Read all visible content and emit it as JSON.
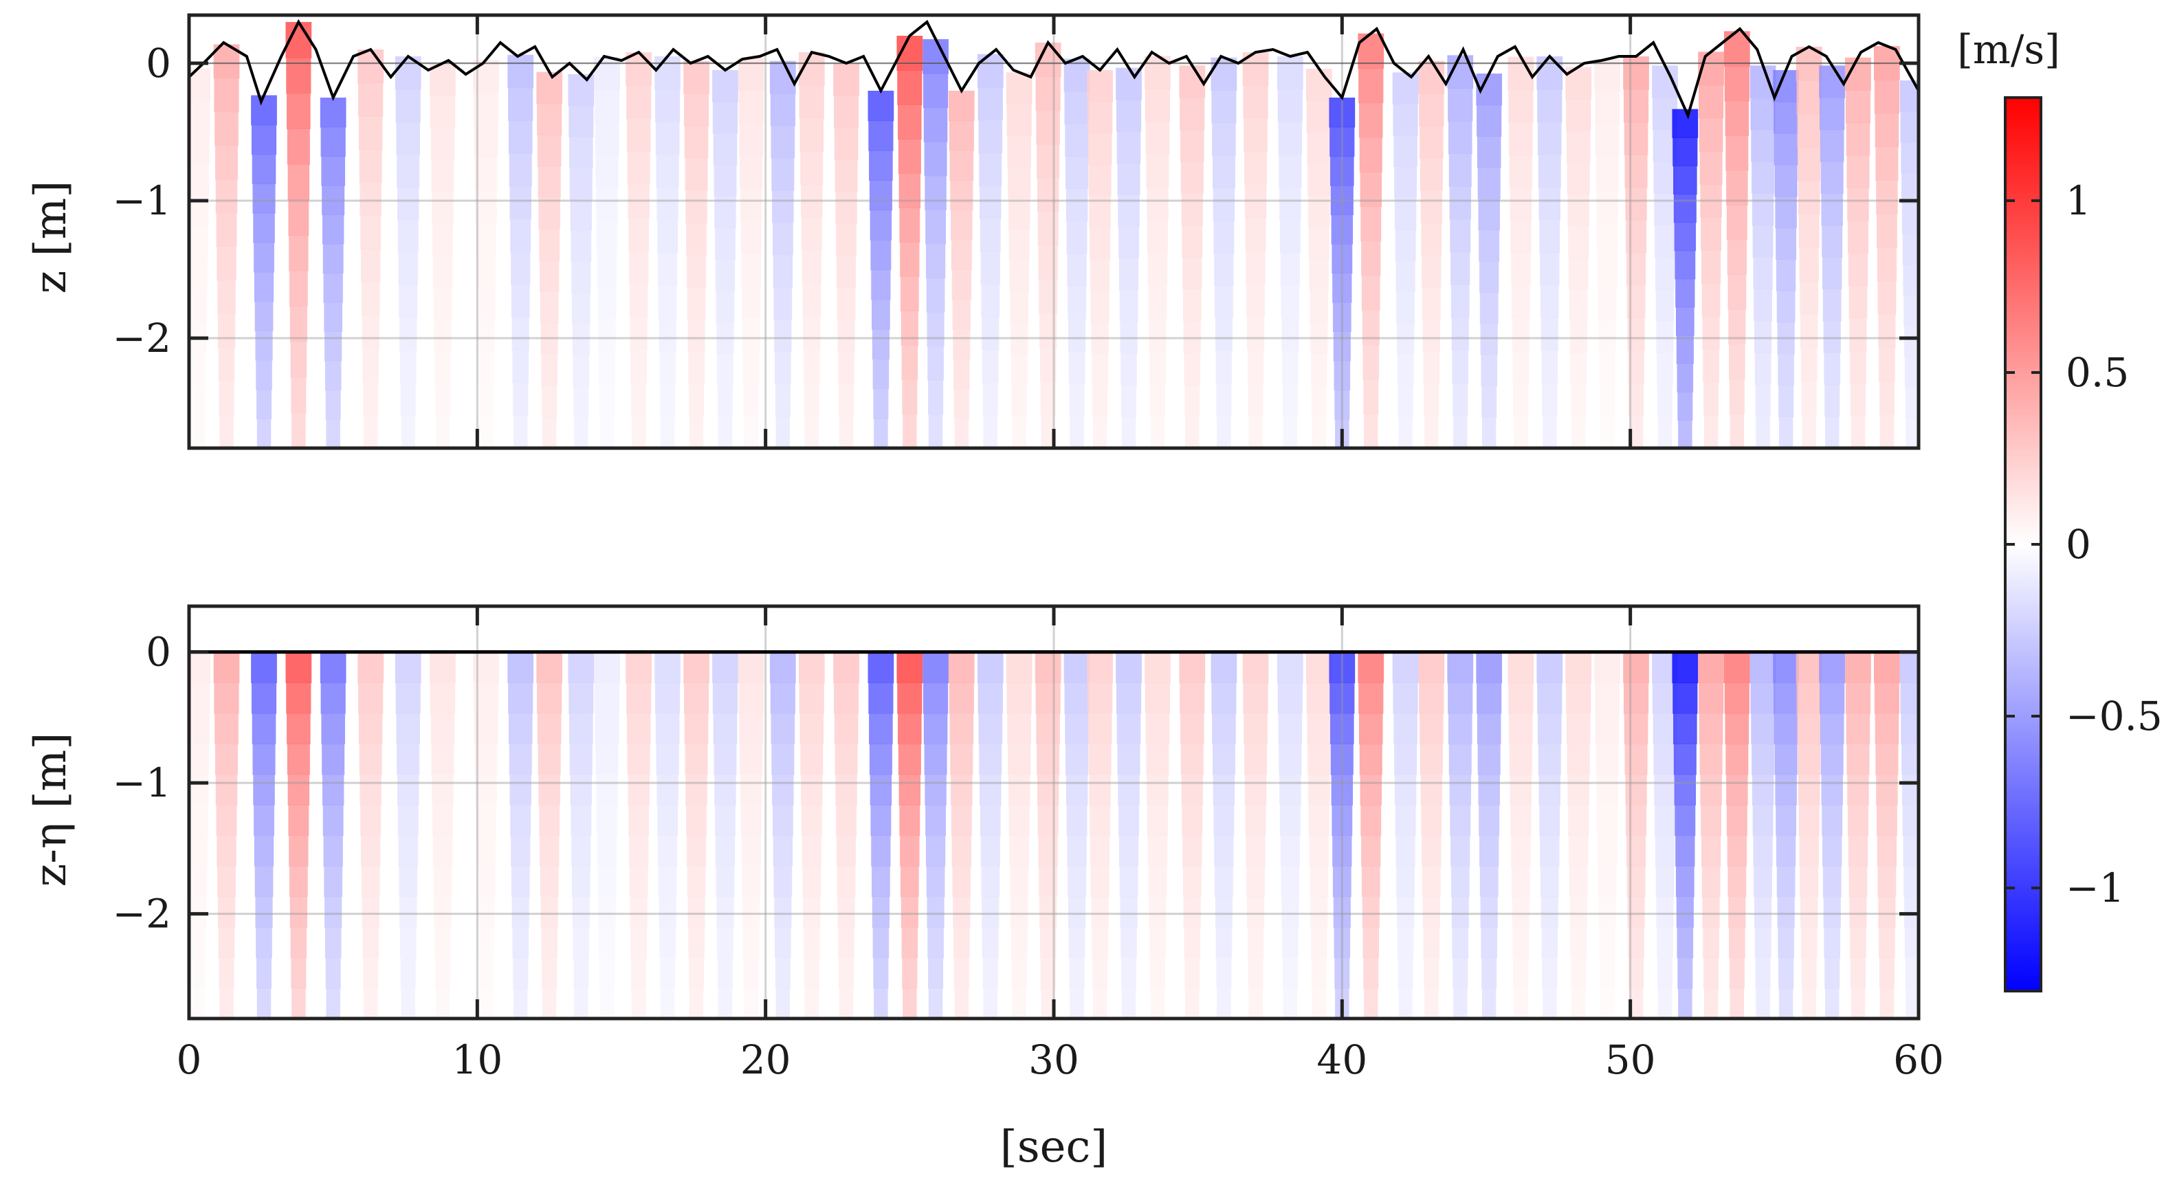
{
  "chart_data": [
    {
      "type": "heatmap",
      "panel": "top",
      "ylabel": "z [m]",
      "xlim": [
        0,
        60
      ],
      "ylim": [
        -2.8,
        0.35
      ],
      "xticks": [
        0,
        10,
        20,
        30,
        40,
        50,
        60
      ],
      "xtick_labels": [
        "",
        "",
        "",
        "",
        "",
        "",
        ""
      ],
      "yticks": [
        0,
        -1,
        -2
      ],
      "ytick_labels": [
        "0",
        "−1",
        "−2"
      ],
      "grid": true,
      "surface_line": {
        "name": "",
        "color": "#000000",
        "t": [
          0,
          0.5,
          1.2,
          2.0,
          2.5,
          3.2,
          3.8,
          4.4,
          5.0,
          5.7,
          6.3,
          7.0,
          7.6,
          8.3,
          9.0,
          9.6,
          10.2,
          10.8,
          11.4,
          12.0,
          12.6,
          13.2,
          13.8,
          14.4,
          15.0,
          15.6,
          16.2,
          16.8,
          17.4,
          18.0,
          18.6,
          19.2,
          19.8,
          20.4,
          21.0,
          21.6,
          22.2,
          22.8,
          23.4,
          24.0,
          24.5,
          25.0,
          25.6,
          26.2,
          26.8,
          27.4,
          28.0,
          28.6,
          29.2,
          29.8,
          30.4,
          31.0,
          31.6,
          32.2,
          32.8,
          33.4,
          34.0,
          34.6,
          35.2,
          35.8,
          36.4,
          37.0,
          37.6,
          38.2,
          38.8,
          39.4,
          40.0,
          40.6,
          41.2,
          41.8,
          42.4,
          43.0,
          43.6,
          44.2,
          44.8,
          45.4,
          46.0,
          46.6,
          47.2,
          47.8,
          48.4,
          49.0,
          49.6,
          50.2,
          50.8,
          51.4,
          52.0,
          52.6,
          53.2,
          53.8,
          54.4,
          55.0,
          55.6,
          56.2,
          56.8,
          57.4,
          58.0,
          58.6,
          59.2,
          60.0
        ],
        "eta": [
          -0.1,
          0.0,
          0.15,
          0.05,
          -0.28,
          0.05,
          0.3,
          0.1,
          -0.25,
          0.05,
          0.1,
          -0.1,
          0.05,
          -0.05,
          0.02,
          -0.08,
          0.0,
          0.15,
          0.05,
          0.12,
          -0.1,
          0.0,
          -0.12,
          0.05,
          0.02,
          0.08,
          -0.05,
          0.1,
          0.0,
          0.05,
          -0.05,
          0.03,
          0.05,
          0.1,
          -0.15,
          0.08,
          0.05,
          0.0,
          0.05,
          -0.2,
          0.0,
          0.2,
          0.3,
          0.05,
          -0.2,
          0.0,
          0.1,
          -0.05,
          -0.1,
          0.15,
          0.0,
          0.05,
          -0.05,
          0.1,
          -0.1,
          0.08,
          0.0,
          0.05,
          -0.15,
          0.05,
          0.0,
          0.08,
          0.1,
          0.05,
          0.08,
          -0.1,
          -0.25,
          0.15,
          0.25,
          0.0,
          -0.1,
          0.05,
          -0.15,
          0.1,
          -0.2,
          0.05,
          0.12,
          -0.1,
          0.05,
          -0.08,
          0.0,
          0.02,
          0.05,
          0.05,
          0.15,
          -0.1,
          -0.38,
          0.05,
          0.15,
          0.25,
          0.1,
          -0.25,
          0.05,
          0.12,
          0.05,
          -0.15,
          0.08,
          0.15,
          0.1,
          -0.2
        ]
      }
    },
    {
      "type": "heatmap",
      "panel": "bottom",
      "xlabel": "[sec]",
      "ylabel": "z-η [m]",
      "xlim": [
        0,
        60
      ],
      "ylim": [
        -2.8,
        0.35
      ],
      "xticks": [
        0,
        10,
        20,
        30,
        40,
        50,
        60
      ],
      "xtick_labels": [
        "0",
        "10",
        "20",
        "30",
        "40",
        "50",
        "60"
      ],
      "yticks": [
        0,
        -1,
        -2
      ],
      "ytick_labels": [
        "0",
        "−1",
        "−2"
      ],
      "grid": true
    }
  ],
  "velocity_field": {
    "t": [
      0.3,
      1.3,
      2.6,
      3.8,
      5.0,
      6.3,
      7.6,
      8.8,
      10.3,
      11.5,
      12.5,
      13.6,
      14.5,
      15.6,
      16.6,
      17.6,
      18.6,
      19.5,
      20.6,
      21.6,
      22.8,
      24.0,
      25.0,
      25.9,
      26.8,
      27.8,
      28.8,
      29.8,
      30.8,
      31.6,
      32.6,
      33.6,
      34.8,
      35.9,
      37.0,
      38.2,
      39.2,
      40.0,
      41.0,
      42.2,
      43.1,
      44.1,
      45.1,
      46.2,
      47.2,
      48.2,
      49.2,
      50.2,
      51.2,
      51.9,
      52.8,
      53.7,
      54.6,
      55.4,
      56.2,
      57.0,
      57.9,
      58.9,
      59.8
    ],
    "u_surface": [
      0.1,
      0.45,
      -0.85,
      0.9,
      -0.75,
      0.3,
      -0.25,
      0.15,
      0.1,
      -0.35,
      0.35,
      -0.25,
      -0.1,
      0.25,
      -0.2,
      0.3,
      -0.25,
      0.15,
      -0.4,
      0.25,
      0.3,
      -0.9,
      0.95,
      -0.7,
      0.4,
      -0.3,
      0.2,
      0.35,
      -0.3,
      0.25,
      -0.3,
      0.2,
      0.3,
      -0.3,
      0.25,
      -0.2,
      0.2,
      -1.0,
      0.7,
      -0.25,
      0.3,
      -0.45,
      -0.55,
      0.2,
      -0.3,
      0.2,
      0.1,
      0.45,
      -0.25,
      -1.25,
      0.5,
      0.7,
      -0.4,
      -0.65,
      0.35,
      -0.55,
      0.45,
      0.5,
      -0.3
    ],
    "width_s": 0.5,
    "decay_scale_m": 2.0
  },
  "colorbar": {
    "label": "[m/s]",
    "range": [
      -1.3,
      1.3
    ],
    "ticks": [
      1,
      0.5,
      0,
      -0.5,
      -1
    ],
    "tick_labels": [
      "1",
      "0.5",
      "0",
      "−0.5",
      "−1"
    ],
    "colors": [
      "#0000ff",
      "#ffffff",
      "#ff0000"
    ]
  }
}
